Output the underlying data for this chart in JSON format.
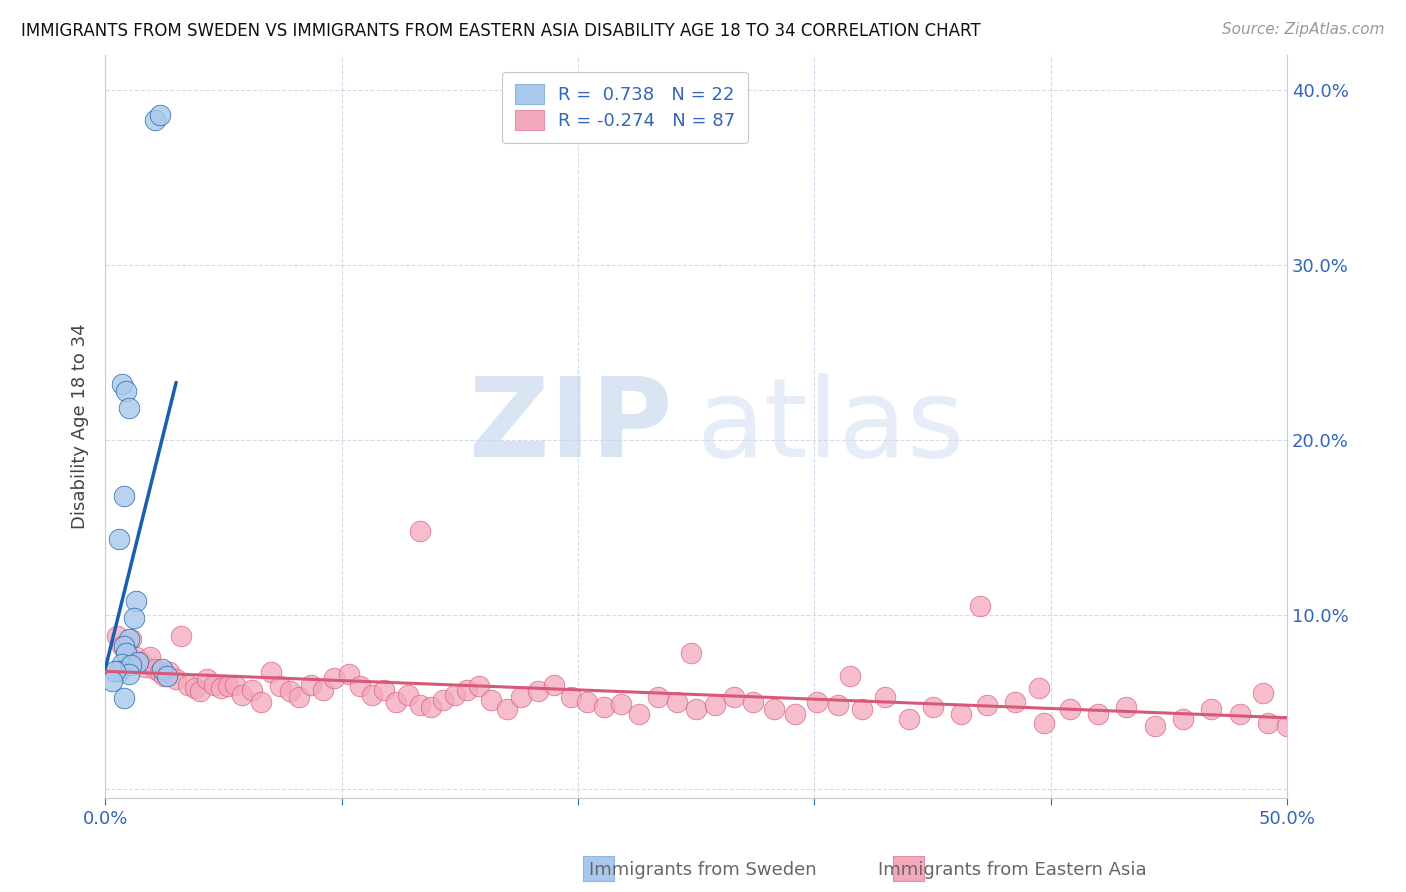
{
  "title": "IMMIGRANTS FROM SWEDEN VS IMMIGRANTS FROM EASTERN ASIA DISABILITY AGE 18 TO 34 CORRELATION CHART",
  "source": "Source: ZipAtlas.com",
  "ylabel": "Disability Age 18 to 34",
  "r_sweden": 0.738,
  "n_sweden": 22,
  "r_eastern_asia": -0.274,
  "n_eastern_asia": 87,
  "color_sweden": "#A8C8EC",
  "color_eastern_asia": "#F4A8BC",
  "line_color_sweden": "#1A5FAB",
  "line_color_eastern_asia": "#D85878",
  "xlim": [
    0.0,
    0.5
  ],
  "ylim": [
    -0.005,
    0.42
  ],
  "legend_label_sweden": "Immigrants from Sweden",
  "legend_label_eastern_asia": "Immigrants from Eastern Asia",
  "sweden_x": [
    0.021,
    0.023,
    0.007,
    0.009,
    0.01,
    0.008,
    0.006,
    0.013,
    0.012,
    0.01,
    0.008,
    0.009,
    0.007,
    0.006,
    0.014,
    0.011,
    0.01,
    0.008,
    0.024,
    0.026,
    0.004,
    0.003
  ],
  "sweden_y": [
    0.383,
    0.386,
    0.232,
    0.228,
    0.218,
    0.168,
    0.143,
    0.108,
    0.098,
    0.086,
    0.082,
    0.078,
    0.072,
    0.068,
    0.073,
    0.071,
    0.066,
    0.052,
    0.069,
    0.065,
    0.068,
    0.062
  ],
  "eastern_asia_x": [
    0.005,
    0.007,
    0.009,
    0.011,
    0.013,
    0.015,
    0.017,
    0.019,
    0.021,
    0.023,
    0.025,
    0.027,
    0.03,
    0.032,
    0.035,
    0.038,
    0.04,
    0.043,
    0.046,
    0.049,
    0.052,
    0.055,
    0.058,
    0.062,
    0.066,
    0.07,
    0.074,
    0.078,
    0.082,
    0.087,
    0.092,
    0.097,
    0.103,
    0.108,
    0.113,
    0.118,
    0.123,
    0.128,
    0.133,
    0.138,
    0.143,
    0.148,
    0.153,
    0.158,
    0.163,
    0.17,
    0.176,
    0.183,
    0.19,
    0.197,
    0.204,
    0.211,
    0.218,
    0.226,
    0.234,
    0.242,
    0.25,
    0.258,
    0.266,
    0.274,
    0.283,
    0.292,
    0.301,
    0.31,
    0.32,
    0.33,
    0.34,
    0.35,
    0.362,
    0.373,
    0.385,
    0.397,
    0.408,
    0.42,
    0.432,
    0.444,
    0.456,
    0.468,
    0.48,
    0.492,
    0.5,
    0.133,
    0.248,
    0.315,
    0.37,
    0.395,
    0.49
  ],
  "eastern_asia_y": [
    0.088,
    0.082,
    0.08,
    0.086,
    0.076,
    0.073,
    0.07,
    0.076,
    0.069,
    0.067,
    0.065,
    0.067,
    0.063,
    0.088,
    0.06,
    0.058,
    0.056,
    0.063,
    0.06,
    0.058,
    0.059,
    0.06,
    0.054,
    0.057,
    0.05,
    0.067,
    0.059,
    0.056,
    0.053,
    0.06,
    0.057,
    0.064,
    0.066,
    0.059,
    0.054,
    0.057,
    0.05,
    0.054,
    0.048,
    0.047,
    0.051,
    0.054,
    0.057,
    0.059,
    0.051,
    0.046,
    0.053,
    0.056,
    0.06,
    0.053,
    0.05,
    0.047,
    0.049,
    0.043,
    0.053,
    0.05,
    0.046,
    0.048,
    0.053,
    0.05,
    0.046,
    0.043,
    0.05,
    0.048,
    0.046,
    0.053,
    0.04,
    0.047,
    0.043,
    0.048,
    0.05,
    0.038,
    0.046,
    0.043,
    0.047,
    0.036,
    0.04,
    0.046,
    0.043,
    0.038,
    0.036,
    0.148,
    0.078,
    0.065,
    0.105,
    0.058,
    0.055
  ]
}
